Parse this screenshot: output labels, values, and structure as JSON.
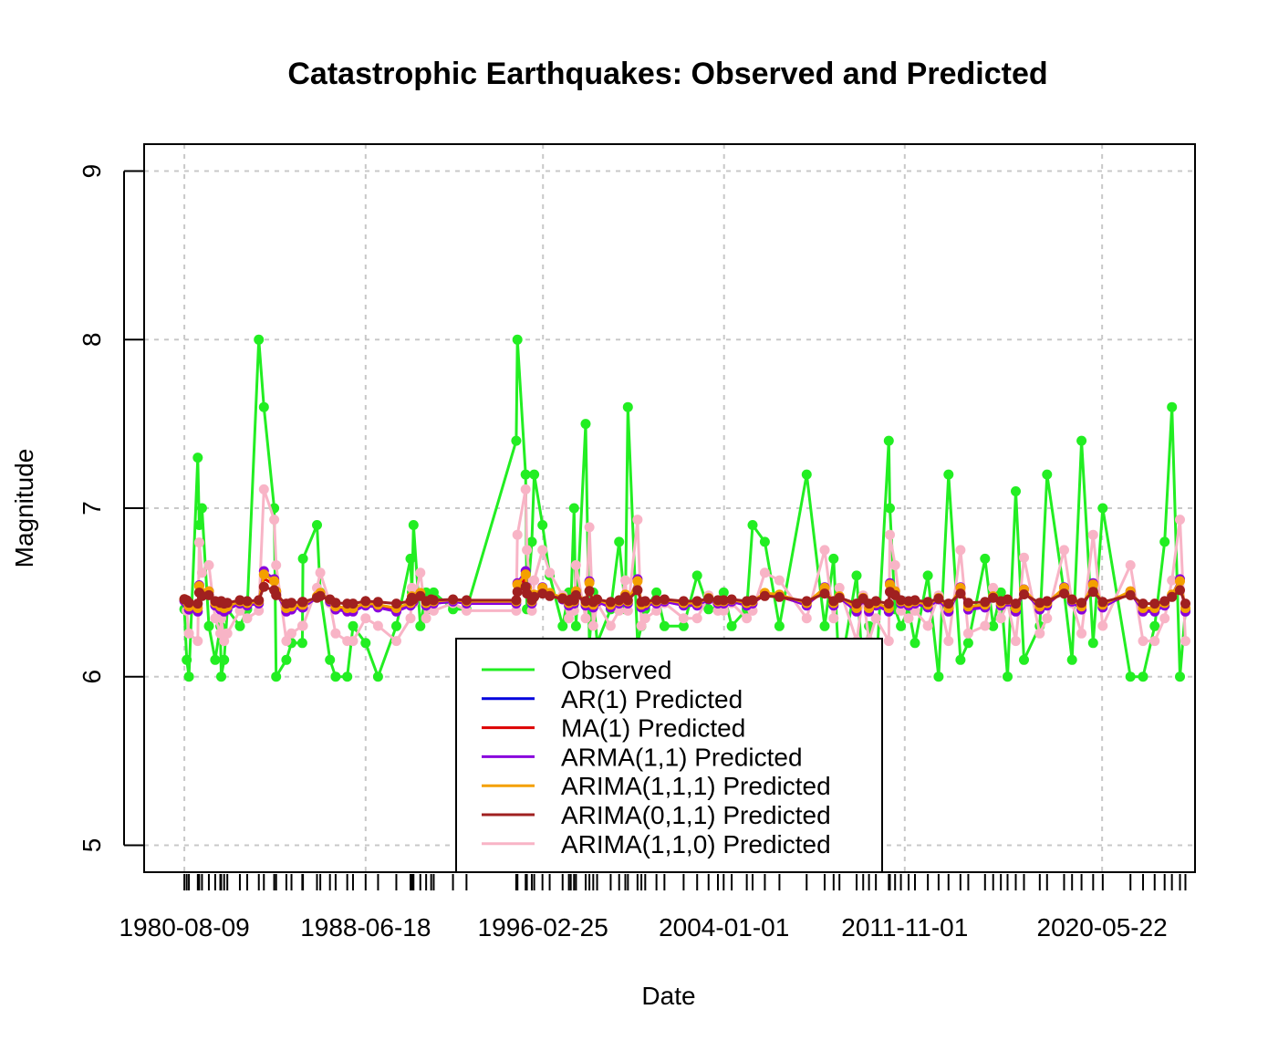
{
  "chart_data": {
    "type": "line",
    "title": "Catastrophic Earthquakes: Observed and Predicted",
    "xlabel": "Date",
    "ylabel": "Magnitude",
    "x_type": "date",
    "xlim": [
      "1978-11-11",
      "2024-06-01"
    ],
    "ylim": [
      4.84,
      9.16
    ],
    "y_ticks": [
      5,
      6,
      7,
      8,
      9
    ],
    "x_tick_labels": [
      "1980-08-09",
      "1988-06-18",
      "1996-02-25",
      "2004-01-01",
      "2011-11-01",
      "2020-05-22"
    ],
    "grid": true,
    "legend_position": "bottom-center",
    "observed_dates": [
      "1980-08-09",
      "1980-09-15",
      "1980-10-20",
      "1981-03-10",
      "1981-04-01",
      "1981-05-15",
      "1981-09-01",
      "1981-12-10",
      "1982-03-01",
      "1982-03-15",
      "1982-05-01",
      "1982-06-20",
      "1983-01-05",
      "1983-05-01",
      "1983-11-01",
      "1984-01-20",
      "1984-07-01",
      "1984-08-01",
      "1985-01-10",
      "1985-04-01",
      "1985-09-19",
      "1985-09-30",
      "1986-05-10",
      "1986-07-01",
      "1986-12-01",
      "1987-03-01",
      "1987-09-01",
      "1987-12-01",
      "1988-06-18",
      "1989-01-01",
      "1989-10-17",
      "1990-05-30",
      "1990-06-20",
      "1990-07-16",
      "1990-11-01",
      "1991-02-01",
      "1991-04-22",
      "1991-06-01",
      "1992-04-01",
      "1992-11-01",
      "1994-12-28",
      "1995-01-17",
      "1995-05-27",
      "1995-06-15",
      "1995-09-01",
      "1995-10-09",
      "1996-02-17",
      "1996-06-10",
      "1997-01-01",
      "1997-04-10",
      "1997-05-10",
      "1997-07-01",
      "1997-08-01",
      "1998-01-01",
      "1998-03-01",
      "1998-05-01",
      "1998-07-01",
      "1999-02-01",
      "1999-06-15",
      "1999-09-21",
      "1999-11-01",
      "2000-04-01",
      "2000-06-01",
      "2000-08-01",
      "2001-01-26",
      "2001-06-01",
      "2002-04-01",
      "2002-11-01",
      "2003-05-01",
      "2003-09-26",
      "2003-12-26",
      "2004-05-01",
      "2004-12-26",
      "2005-03-28",
      "2005-10-08",
      "2006-05-27",
      "2007-08-01",
      "2008-05-12",
      "2008-10-01",
      "2009-01-01",
      "2009-09-30",
      "2010-01-12",
      "2010-04-14",
      "2010-08-01",
      "2011-02-22",
      "2011-03-11",
      "2011-06-01",
      "2011-09-01",
      "2012-01-01",
      "2012-04-11",
      "2012-11-01",
      "2013-04-20",
      "2013-09-24",
      "2014-04-01",
      "2014-08-03",
      "2015-04-25",
      "2015-09-01",
      "2016-01-01",
      "2016-04-16",
      "2016-08-24",
      "2017-01-01",
      "2017-09-08",
      "2018-01-01",
      "2018-09-28",
      "2019-02-01",
      "2019-07-01",
      "2020-01-01",
      "2020-06-01",
      "2021-08-14",
      "2022-03-01",
      "2022-09-01",
      "2023-02-06",
      "2023-06-01",
      "2023-10-07",
      "2024-01-01"
    ],
    "observed_values": [
      6.4,
      6.1,
      6.0,
      7.3,
      6.9,
      7.0,
      6.3,
      6.1,
      6.3,
      6.0,
      6.1,
      6.4,
      6.3,
      6.4,
      8.0,
      7.6,
      7.0,
      6.0,
      6.1,
      6.2,
      6.2,
      6.7,
      6.9,
      6.5,
      6.1,
      6.0,
      6.0,
      6.3,
      6.2,
      6.0,
      6.3,
      6.7,
      6.5,
      6.9,
      6.3,
      6.5,
      6.4,
      6.5,
      6.4,
      6.4,
      7.4,
      8.0,
      7.2,
      6.4,
      6.8,
      7.2,
      6.9,
      6.6,
      6.3,
      6.5,
      6.4,
      7.0,
      6.3,
      7.5,
      6.2,
      6.5,
      6.2,
      6.4,
      6.8,
      6.4,
      7.6,
      6.2,
      6.3,
      6.4,
      6.5,
      6.3,
      6.3,
      6.6,
      6.4,
      6.4,
      6.5,
      6.3,
      6.4,
      6.9,
      6.8,
      6.3,
      7.2,
      6.3,
      6.7,
      6.0,
      6.6,
      6.0,
      6.3,
      6.0,
      7.4,
      7.0,
      6.4,
      6.3,
      6.4,
      6.2,
      6.6,
      6.0,
      7.2,
      6.1,
      6.2,
      6.7,
      6.3,
      6.5,
      6.0,
      7.1,
      6.1,
      6.3,
      7.2,
      6.5,
      6.1,
      7.4,
      6.2,
      7.0,
      6.0,
      6.0,
      6.3,
      6.8,
      7.6,
      6.0,
      6.4
    ],
    "series": [
      {
        "name": "Observed",
        "color": "#22ee22",
        "marker": true
      },
      {
        "name": "AR(1) Predicted",
        "color": "#0000dd",
        "marker": false
      },
      {
        "name": "MA(1) Predicted",
        "color": "#dd0000",
        "marker": false
      },
      {
        "name": "ARMA(1,1) Predicted",
        "color": "#8800dd",
        "marker": true,
        "base": 6.45,
        "persist": 0.12
      },
      {
        "name": "ARIMA(1,1,1) Predicted",
        "color": "#f4a000",
        "marker": true,
        "base": 6.46,
        "persist": 0.1
      },
      {
        "name": "ARIMA(0,1,1) Predicted",
        "color": "#a02020",
        "marker": true,
        "base": 6.46,
        "persist": 0.05
      },
      {
        "name": "ARIMA(1,1,0) Predicted",
        "color": "#f8b4c6",
        "marker": true,
        "base": 6.45,
        "persist": 0.45
      }
    ]
  }
}
